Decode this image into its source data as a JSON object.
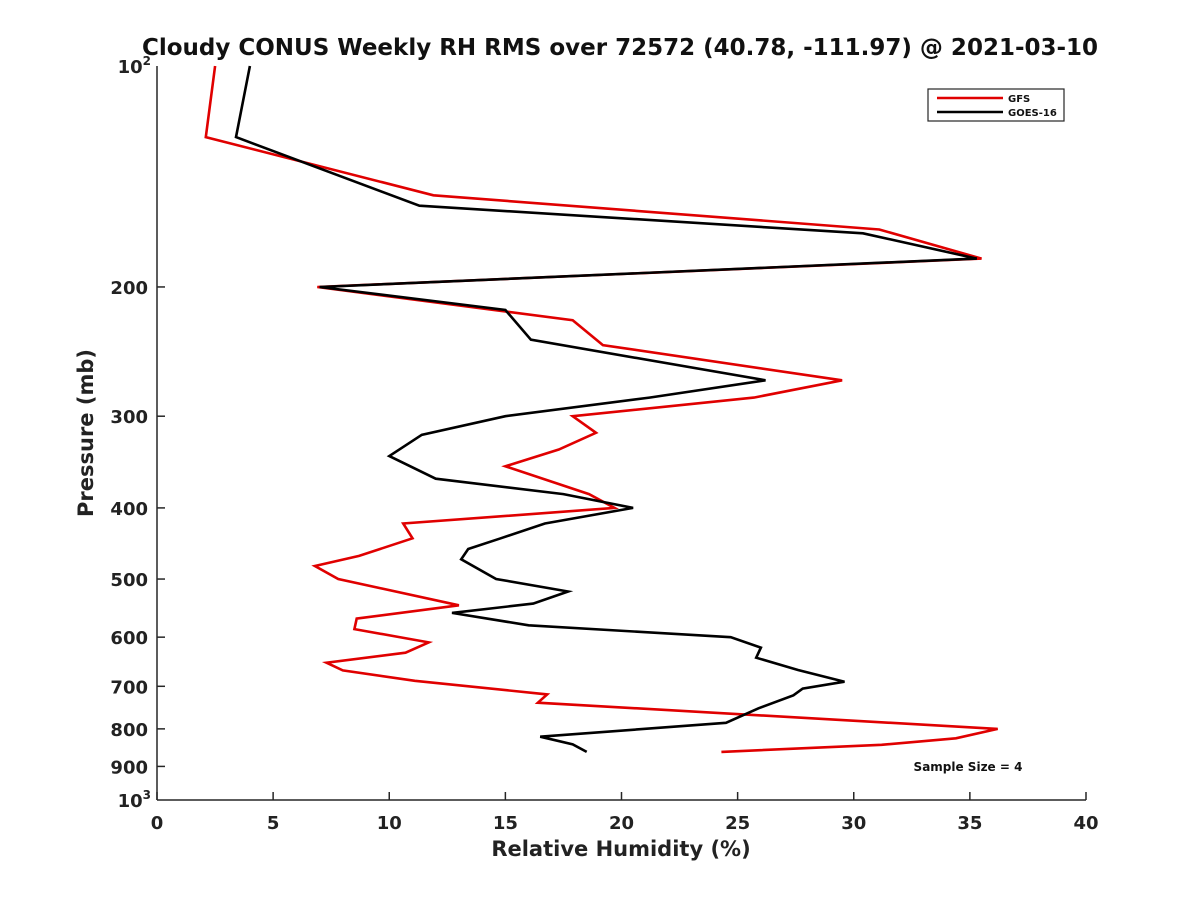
{
  "chart_data": {
    "type": "line",
    "title": "Cloudy CONUS Weekly RH RMS over 72572 (40.78, -111.97) @ 2021-03-10",
    "xlabel": "Relative Humidity (%)",
    "ylabel": "Pressure (mb)",
    "xlim": [
      0,
      40
    ],
    "ylim": [
      100,
      1000
    ],
    "yscale": "log",
    "y_inverted": true,
    "grid": false,
    "x_ticks": [
      0,
      5,
      10,
      15,
      20,
      25,
      30,
      35,
      40
    ],
    "x_tick_labels": [
      "0",
      "5",
      "10",
      "15",
      "20",
      "25",
      "30",
      "35",
      "40"
    ],
    "y_ticks": [
      200,
      300,
      400,
      500,
      600,
      700,
      800,
      900
    ],
    "y_tick_labels": [
      "200",
      "300",
      "400",
      "500",
      "600",
      "700",
      "800",
      "900"
    ],
    "y_end_labels": [
      {
        "value": 100,
        "base": "10",
        "exp": "2"
      },
      {
        "value": 1000,
        "base": "10",
        "exp": "3"
      }
    ],
    "legend_position": "top-right",
    "series": [
      {
        "name": "GFS",
        "color": "#e00000",
        "points": [
          [
            2.5,
            100
          ],
          [
            2.1,
            125
          ],
          [
            11.9,
            150
          ],
          [
            31.1,
            167
          ],
          [
            35.5,
            183
          ],
          [
            6.9,
            200
          ],
          [
            17.9,
            222
          ],
          [
            19.2,
            240
          ],
          [
            29.5,
            268
          ],
          [
            25.7,
            283
          ],
          [
            17.9,
            300
          ],
          [
            18.9,
            316
          ],
          [
            17.3,
            333
          ],
          [
            15.0,
            351
          ],
          [
            18.6,
            383
          ],
          [
            19.7,
            400
          ],
          [
            10.6,
            420
          ],
          [
            11.0,
            440
          ],
          [
            8.7,
            465
          ],
          [
            6.8,
            480
          ],
          [
            7.8,
            500
          ],
          [
            13.0,
            543
          ],
          [
            8.6,
            566
          ],
          [
            8.5,
            585
          ],
          [
            11.7,
            610
          ],
          [
            10.7,
            630
          ],
          [
            7.3,
            650
          ],
          [
            8.0,
            666
          ],
          [
            11.1,
            688
          ],
          [
            16.8,
            718
          ],
          [
            16.4,
            737
          ],
          [
            36.2,
            800
          ],
          [
            34.4,
            824
          ],
          [
            31.2,
            841
          ],
          [
            24.3,
            860
          ]
        ]
      },
      {
        "name": "GOES-16",
        "color": "#000000",
        "points": [
          [
            4.0,
            100
          ],
          [
            3.4,
            125
          ],
          [
            11.3,
            155
          ],
          [
            30.4,
            169
          ],
          [
            35.3,
            183
          ],
          [
            7.0,
            200
          ],
          [
            15.0,
            215
          ],
          [
            16.1,
            236
          ],
          [
            26.2,
            268
          ],
          [
            21.2,
            283
          ],
          [
            15.0,
            300
          ],
          [
            11.4,
            318
          ],
          [
            10.0,
            340
          ],
          [
            12.0,
            365
          ],
          [
            17.5,
            383
          ],
          [
            20.5,
            400
          ],
          [
            16.7,
            420
          ],
          [
            14.8,
            440
          ],
          [
            13.4,
            455
          ],
          [
            13.1,
            470
          ],
          [
            14.6,
            500
          ],
          [
            17.7,
            520
          ],
          [
            16.2,
            540
          ],
          [
            12.7,
            556
          ],
          [
            16.0,
            578
          ],
          [
            24.7,
            600
          ],
          [
            26.0,
            620
          ],
          [
            25.8,
            640
          ],
          [
            27.6,
            665
          ],
          [
            29.6,
            690
          ],
          [
            27.8,
            705
          ],
          [
            27.4,
            720
          ],
          [
            25.9,
            750
          ],
          [
            24.5,
            785
          ],
          [
            16.5,
            820
          ],
          [
            17.9,
            840
          ],
          [
            18.5,
            860
          ]
        ]
      }
    ],
    "annotations": [
      {
        "text": "Sample Size = 4",
        "x": 33.2,
        "y": 900
      }
    ]
  }
}
